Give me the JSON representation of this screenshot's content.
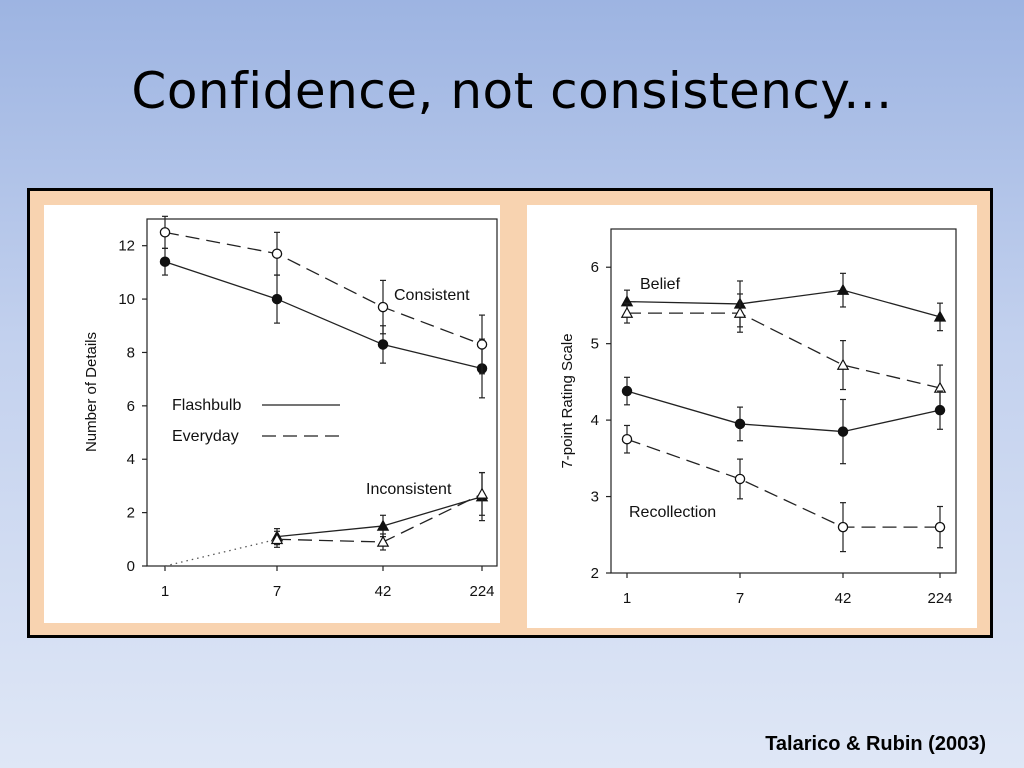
{
  "slide": {
    "title": "Confidence, not consistency...",
    "citation": "Talarico & Rubin (2003)"
  },
  "chart_data": [
    {
      "type": "line",
      "xlabel": "",
      "ylabel": "Number of Details",
      "x": [
        "1",
        "7",
        "42",
        "224"
      ],
      "ylim": [
        0,
        13
      ],
      "yticks": [
        0,
        2,
        4,
        6,
        8,
        10,
        12
      ],
      "legend": [
        {
          "label": "Flashbulb",
          "style": "solid"
        },
        {
          "label": "Everyday",
          "style": "dashed"
        }
      ],
      "annotations": [
        "Consistent",
        "Inconsistent"
      ],
      "series": [
        {
          "group": "Consistent",
          "condition": "Flashbulb",
          "marker": "filled-circle",
          "style": "solid",
          "values": [
            11.4,
            10.0,
            8.3,
            7.4
          ],
          "err": [
            0.5,
            0.9,
            0.7,
            1.1
          ]
        },
        {
          "group": "Consistent",
          "condition": "Everyday",
          "marker": "open-circle",
          "style": "dashed",
          "values": [
            12.5,
            11.7,
            9.7,
            8.3
          ],
          "err": [
            0.6,
            0.8,
            1.0,
            1.1
          ]
        },
        {
          "group": "Inconsistent",
          "condition": "Flashbulb",
          "marker": "filled-triangle",
          "style": "solid",
          "values": [
            0,
            1.1,
            1.5,
            2.6
          ],
          "err": [
            0,
            0.3,
            0.4,
            0.9
          ]
        },
        {
          "group": "Inconsistent",
          "condition": "Everyday",
          "marker": "open-triangle",
          "style": "dashed",
          "values": [
            0,
            1.0,
            0.9,
            2.7
          ],
          "err": [
            0,
            0.3,
            0.3,
            0.8
          ]
        }
      ]
    },
    {
      "type": "line",
      "xlabel": "",
      "ylabel": "7-point Rating Scale",
      "x": [
        "1",
        "7",
        "42",
        "224"
      ],
      "ylim": [
        2,
        6.5
      ],
      "yticks": [
        2,
        3,
        4,
        5,
        6
      ],
      "annotations": [
        "Belief",
        "Recollection"
      ],
      "series": [
        {
          "group": "Belief",
          "condition": "Flashbulb",
          "marker": "filled-triangle",
          "style": "solid",
          "values": [
            5.55,
            5.52,
            5.7,
            5.35
          ],
          "err": [
            0.15,
            0.3,
            0.22,
            0.18
          ]
        },
        {
          "group": "Belief",
          "condition": "Everyday",
          "marker": "open-triangle",
          "style": "dashed",
          "values": [
            5.4,
            5.4,
            4.72,
            4.42
          ],
          "err": [
            0.13,
            0.25,
            0.32,
            0.3
          ]
        },
        {
          "group": "Recollection",
          "condition": "Flashbulb",
          "marker": "filled-circle",
          "style": "solid",
          "values": [
            4.38,
            3.95,
            3.85,
            4.13
          ],
          "err": [
            0.18,
            0.22,
            0.42,
            0.25
          ]
        },
        {
          "group": "Recollection",
          "condition": "Everyday",
          "marker": "open-circle",
          "style": "dashed",
          "values": [
            3.75,
            3.23,
            2.6,
            2.6
          ],
          "err": [
            0.18,
            0.26,
            0.32,
            0.27
          ]
        }
      ]
    }
  ]
}
